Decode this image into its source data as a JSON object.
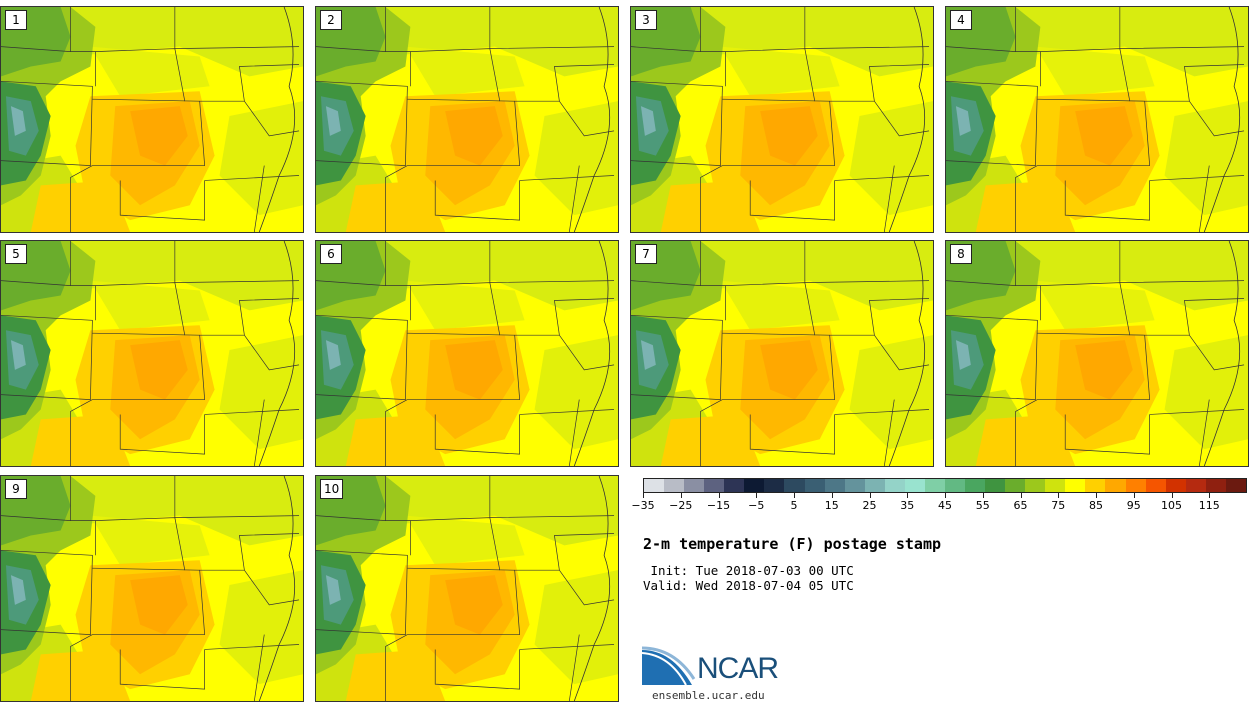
{
  "members": [
    "1",
    "2",
    "3",
    "4",
    "5",
    "6",
    "7",
    "8",
    "9",
    "10"
  ],
  "colorbar": {
    "colors": [
      "#dde1e6",
      "#b8bcc6",
      "#8a8fa3",
      "#5d6280",
      "#2d3455",
      "#0d1a33",
      "#1c2c45",
      "#2d4a60",
      "#3a5f73",
      "#4d7787",
      "#64939c",
      "#7cb3b2",
      "#94d3c8",
      "#99e3cf",
      "#7fcfa6",
      "#62b983",
      "#4aa660",
      "#3f9440",
      "#6aad2c",
      "#9cc81c",
      "#cfe30e",
      "#ffff00",
      "#ffd000",
      "#ffa800",
      "#ff8000",
      "#f55500",
      "#d23200",
      "#b52a10",
      "#8f2010",
      "#6b1a10"
    ],
    "ticks": [
      "−35",
      "−25",
      "−15",
      "−5",
      "5",
      "15",
      "25",
      "35",
      "45",
      "55",
      "65",
      "75",
      "85",
      "95",
      "105",
      "115"
    ],
    "vmin": -35,
    "vmax": 125
  },
  "title": "2-m temperature (F) postage stamp",
  "init": " Init: Tue 2018-07-03 00 UTC",
  "valid": "Valid: Wed 2018-07-04 05 UTC",
  "logo": {
    "text": "NCAR",
    "site": "ensemble.ucar.edu"
  }
}
